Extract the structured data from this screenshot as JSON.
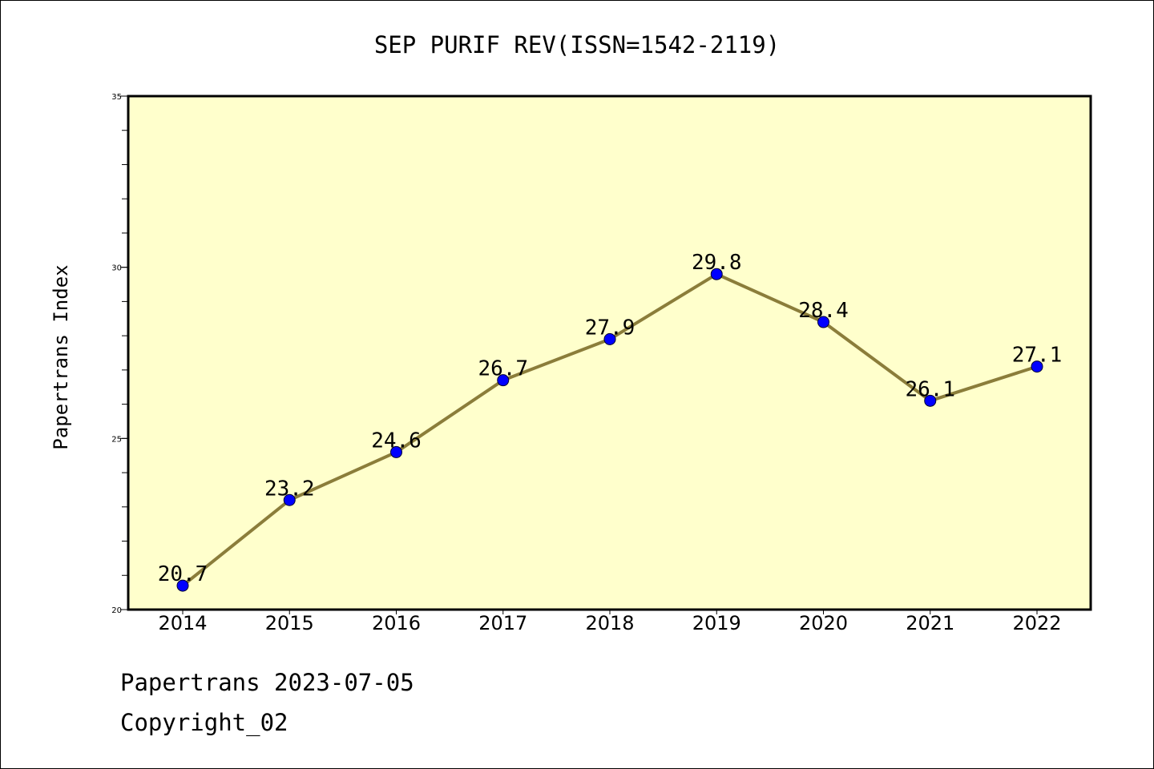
{
  "colors": {
    "plot_background": "#ffffcc",
    "line": "#8b7d3a",
    "marker": "#0000ff"
  },
  "chart_data": {
    "type": "line",
    "title": "SEP PURIF REV(ISSN=1542-2119)",
    "xlabel": "",
    "ylabel": "Papertrans Index",
    "categories": [
      "2014",
      "2015",
      "2016",
      "2017",
      "2018",
      "2019",
      "2020",
      "2021",
      "2022"
    ],
    "series": [
      {
        "values": [
          20.7,
          23.2,
          24.6,
          26.7,
          27.9,
          29.8,
          28.4,
          26.1,
          27.1
        ]
      }
    ],
    "data_labels": [
      "20.7",
      "23.2",
      "24.6",
      "26.7",
      "27.9",
      "29.8",
      "28.4",
      "26.1",
      "27.1"
    ],
    "ylim": [
      20,
      35
    ],
    "yticks": [
      20,
      25,
      30,
      35
    ],
    "ytick_labels": [
      "20",
      "25",
      "30",
      "35"
    ],
    "y_minor_step": 1,
    "grid": false,
    "legend": "none"
  },
  "footer": {
    "date_text": "Papertrans 2023-07-05",
    "copyright_text": "Copyright_02"
  }
}
